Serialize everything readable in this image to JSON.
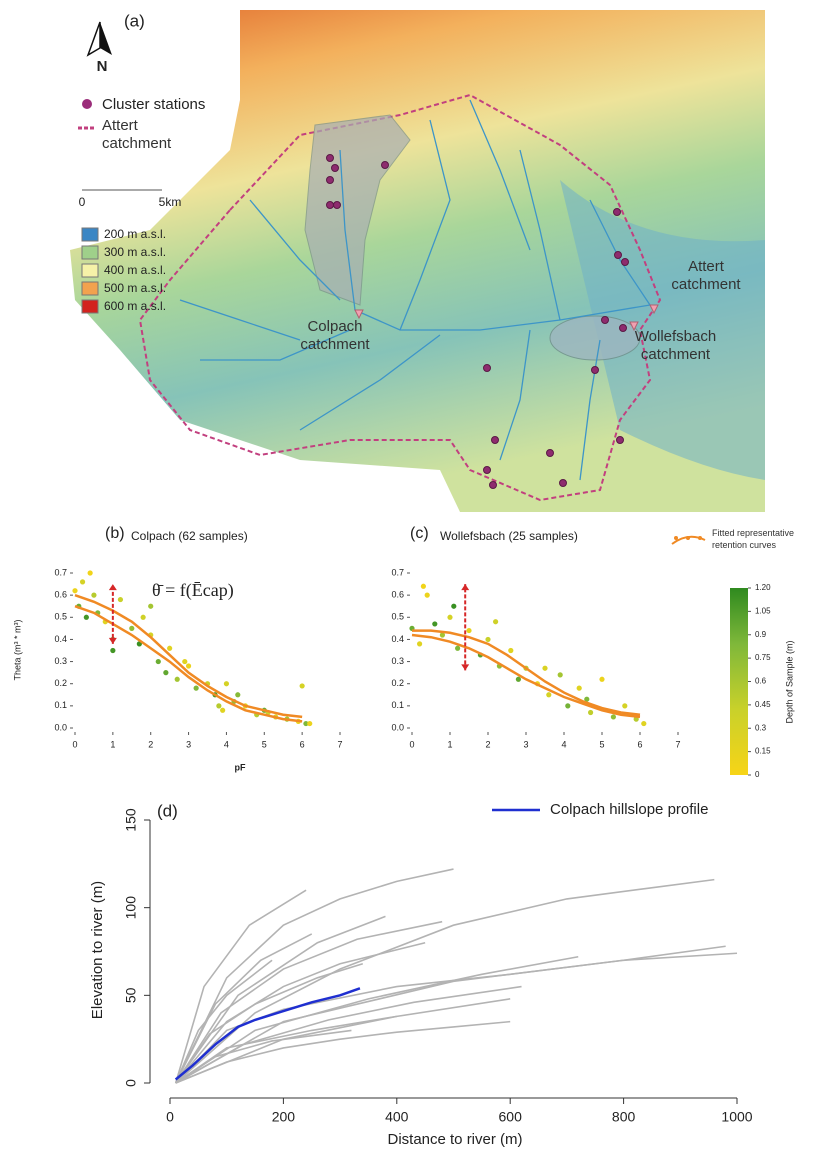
{
  "map": {
    "panel_label": "(a)",
    "north": "N",
    "stations_label": "Cluster stations",
    "boundary_label": "Attert catchment",
    "scale": [
      "0",
      "5km"
    ],
    "elevation_legend": [
      {
        "label": "200 m a.s.l.",
        "color": "#3b86c4"
      },
      {
        "label": "300 m a.s.l.",
        "color": "#9fd08a"
      },
      {
        "label": "400 m a.s.l.",
        "color": "#f6f2a8"
      },
      {
        "label": "500 m a.s.l.",
        "color": "#f2a24e"
      },
      {
        "label": "600 m a.s.l.",
        "color": "#d2231e"
      }
    ],
    "places": [
      "Colpach catchment",
      "Attert catchment",
      "Wollefsbach catchment"
    ]
  },
  "chart_data": [
    {
      "type": "scatter",
      "panel_label": "(b)",
      "title": "Colpach (62 samples)",
      "annotation": "θ̄ = f(Ēcap)",
      "x_label": "pF",
      "y_label": "Theta (m³ * m³)",
      "xlim": [
        0,
        7
      ],
      "ylim": [
        0,
        0.7
      ],
      "xticks": [
        0,
        1,
        2,
        3,
        4,
        5,
        6,
        7
      ],
      "yticks": [
        {
          "value": 0,
          "label": "0.0"
        },
        0.1,
        0.2,
        0.3,
        0.4,
        0.5,
        0.6,
        0.7
      ],
      "marker": {
        "x": 1,
        "y": [
          0.38,
          0.65
        ],
        "color": "#d62728"
      },
      "series": [
        {
          "kind": "points",
          "x": [
            0,
            0.1,
            0.2,
            0.3,
            0.5,
            0.6,
            0.8,
            1.0,
            1.2,
            1.5,
            1.7,
            2.0,
            2.2,
            2.5,
            2.7,
            3.0,
            3.2,
            3.5,
            3.7,
            3.9,
            4.0,
            4.2,
            4.5,
            4.8,
            5.0,
            5.3,
            5.6,
            5.9,
            6.0,
            6.1,
            0.4,
            1.0,
            1.8,
            2.4,
            2.9,
            3.8,
            4.3,
            5.1,
            6.2,
            2.0
          ],
          "values": [
            0.62,
            0.55,
            0.66,
            0.5,
            0.6,
            0.52,
            0.48,
            0.4,
            0.58,
            0.45,
            0.38,
            0.42,
            0.3,
            0.36,
            0.22,
            0.28,
            0.18,
            0.2,
            0.15,
            0.08,
            0.2,
            0.12,
            0.1,
            0.06,
            0.08,
            0.05,
            0.04,
            0.03,
            0.19,
            0.02,
            0.7,
            0.35,
            0.5,
            0.25,
            0.3,
            0.1,
            0.15,
            0.07,
            0.02,
            0.55
          ],
          "depth": [
            0.1,
            0.9,
            0.3,
            1.1,
            0.5,
            0.8,
            0.2,
            1.0,
            0.4,
            0.7,
            1.15,
            0.3,
            0.9,
            0.2,
            0.6,
            0.1,
            0.8,
            0.4,
            1.05,
            0.2,
            0.3,
            0.7,
            0.15,
            0.5,
            0.9,
            0.25,
            0.6,
            0.1,
            0.3,
            0.8,
            0.05,
            1.1,
            0.35,
            0.95,
            0.2,
            0.5,
            0.75,
            0.4,
            0.1,
            0.6
          ]
        },
        {
          "kind": "line",
          "color": "#f08a24",
          "x": [
            0,
            0.5,
            1,
            1.5,
            2,
            2.5,
            3,
            3.5,
            4,
            4.5,
            5,
            5.5,
            6
          ],
          "values": [
            0.6,
            0.57,
            0.53,
            0.48,
            0.41,
            0.33,
            0.25,
            0.19,
            0.14,
            0.1,
            0.08,
            0.06,
            0.05
          ]
        },
        {
          "kind": "line",
          "color": "#f08a24",
          "x": [
            0,
            0.5,
            1,
            1.5,
            2,
            2.5,
            3,
            3.5,
            4,
            4.5,
            5,
            5.5,
            6
          ],
          "values": [
            0.55,
            0.52,
            0.47,
            0.42,
            0.36,
            0.3,
            0.23,
            0.17,
            0.12,
            0.08,
            0.06,
            0.04,
            0.03
          ]
        }
      ]
    },
    {
      "type": "scatter",
      "panel_label": "(c)",
      "title": "Wollefsbach (25 samples)",
      "xlim": [
        0,
        7
      ],
      "ylim": [
        0,
        0.7
      ],
      "xticks": [
        0,
        1,
        2,
        3,
        4,
        5,
        6,
        7
      ],
      "yticks": [
        {
          "value": 0,
          "label": "0.0"
        },
        0.1,
        0.2,
        0.3,
        0.4,
        0.5,
        0.6,
        0.7
      ],
      "marker": {
        "x": 1.4,
        "y": [
          0.26,
          0.65
        ],
        "color": "#d62728"
      },
      "colorbar": {
        "label": "Depth of Sample (m)",
        "lim": [
          0,
          1.2
        ],
        "colors": [
          "#f7d417",
          "#c9d12a",
          "#7fb83a",
          "#2f8a1f"
        ],
        "ticks": [
          0,
          0.15,
          0.3,
          0.45,
          0.6,
          0.75,
          0.9,
          {
            "value": 1.05,
            "label": "1.05"
          },
          {
            "value": 1.2,
            "label": "1.20"
          }
        ]
      },
      "series": [
        {
          "kind": "points",
          "x": [
            0,
            0.2,
            0.4,
            0.6,
            0.8,
            1.0,
            1.2,
            1.5,
            1.8,
            2.0,
            2.3,
            2.6,
            2.8,
            3.0,
            3.3,
            3.6,
            3.9,
            4.1,
            4.4,
            4.7,
            5.0,
            5.3,
            5.6,
            5.9,
            6.1,
            0.3,
            1.1,
            2.2,
            3.5,
            4.6
          ],
          "values": [
            0.45,
            0.38,
            0.6,
            0.47,
            0.42,
            0.5,
            0.36,
            0.44,
            0.33,
            0.4,
            0.28,
            0.35,
            0.22,
            0.27,
            0.2,
            0.15,
            0.24,
            0.1,
            0.18,
            0.07,
            0.22,
            0.05,
            0.1,
            0.04,
            0.02,
            0.64,
            0.55,
            0.48,
            0.27,
            0.13
          ],
          "depth": [
            0.9,
            0.2,
            0.1,
            1.1,
            0.6,
            0.3,
            0.8,
            0.15,
            1.0,
            0.4,
            0.7,
            0.2,
            0.95,
            0.5,
            0.1,
            0.3,
            0.6,
            0.85,
            0.2,
            0.45,
            0.1,
            0.7,
            0.3,
            0.5,
            0.2,
            0.05,
            1.15,
            0.35,
            0.25,
            0.8
          ]
        },
        {
          "kind": "line",
          "name": "Fitted representative retention curves",
          "color": "#f08a24",
          "x": [
            0,
            0.5,
            1,
            1.5,
            2,
            2.5,
            3,
            3.5,
            4,
            4.5,
            5,
            5.5,
            6
          ],
          "values": [
            0.44,
            0.44,
            0.43,
            0.41,
            0.38,
            0.33,
            0.27,
            0.21,
            0.16,
            0.12,
            0.09,
            0.07,
            0.06
          ]
        },
        {
          "kind": "line",
          "color": "#f08a24",
          "x": [
            0,
            0.5,
            1,
            1.5,
            2,
            2.5,
            3,
            3.5,
            4,
            4.5,
            5,
            5.5,
            6
          ],
          "values": [
            0.42,
            0.41,
            0.39,
            0.36,
            0.32,
            0.27,
            0.22,
            0.18,
            0.14,
            0.11,
            0.08,
            0.06,
            0.05
          ]
        }
      ]
    },
    {
      "type": "line",
      "panel_label": "(d)",
      "x_label": "Distance to river (m)",
      "y_label": "Elevation to river (m)",
      "xlim": [
        0,
        1000
      ],
      "ylim": [
        0,
        150
      ],
      "xticks": [
        0,
        200,
        400,
        600,
        800,
        1000
      ],
      "yticks": [
        0,
        50,
        100,
        150
      ],
      "background_lines": {
        "color": "#b3b3b3",
        "lines": [
          {
            "x": [
              10,
              100,
              200,
              300,
              400,
              500
            ],
            "y": [
              0,
              60,
              90,
              105,
              115,
              122
            ]
          },
          {
            "x": [
              10,
              80,
              160,
              250
            ],
            "y": [
              0,
              45,
              70,
              85
            ]
          },
          {
            "x": [
              10,
              100,
              200,
              400,
              600,
              800,
              1000
            ],
            "y": [
              0,
              30,
              42,
              55,
              62,
              70,
              74
            ]
          },
          {
            "x": [
              10,
              150,
              300,
              500,
              700,
              960
            ],
            "y": [
              0,
              40,
              65,
              90,
              105,
              116
            ]
          },
          {
            "x": [
              10,
              100,
              200,
              300,
              450
            ],
            "y": [
              0,
              35,
              55,
              68,
              80
            ]
          },
          {
            "x": [
              10,
              50,
              100,
              180
            ],
            "y": [
              0,
              30,
              50,
              70
            ]
          },
          {
            "x": [
              10,
              200,
              400,
              600
            ],
            "y": [
              0,
              25,
              38,
              48
            ]
          },
          {
            "x": [
              10,
              100,
              250,
              400
            ],
            "y": [
              0,
              20,
              30,
              38
            ]
          },
          {
            "x": [
              10,
              120,
              260,
              380
            ],
            "y": [
              0,
              50,
              80,
              95
            ]
          },
          {
            "x": [
              10,
              80,
              180,
              320
            ],
            "y": [
              0,
              15,
              24,
              30
            ]
          },
          {
            "x": [
              10,
              200,
              500,
              800,
              980
            ],
            "y": [
              0,
              35,
              58,
              70,
              78
            ]
          },
          {
            "x": [
              10,
              60,
              140,
              240
            ],
            "y": [
              0,
              55,
              90,
              110
            ]
          },
          {
            "x": [
              10,
              150,
              350,
              550,
              720
            ],
            "y": [
              0,
              30,
              48,
              62,
              72
            ]
          },
          {
            "x": [
              10,
              100,
              200,
              300,
              400,
              500,
              600
            ],
            "y": [
              0,
              12,
              20,
              25,
              29,
              32,
              35
            ]
          },
          {
            "x": [
              10,
              90,
              200,
              330,
              480
            ],
            "y": [
              0,
              40,
              65,
              82,
              92
            ]
          },
          {
            "x": [
              10,
              70,
              150,
              260,
              340
            ],
            "y": [
              0,
              28,
              45,
              60,
              68
            ]
          },
          {
            "x": [
              10,
              130,
              280,
              430,
              620
            ],
            "y": [
              0,
              22,
              36,
              46,
              55
            ]
          }
        ]
      },
      "series": [
        {
          "name": "Colpach hillslope profile",
          "color": "#1f2fd0",
          "x": [
            10,
            40,
            80,
            120,
            150,
            200,
            250,
            300,
            335
          ],
          "values": [
            2,
            10,
            22,
            32,
            36,
            41,
            46,
            50,
            54
          ]
        }
      ]
    }
  ]
}
